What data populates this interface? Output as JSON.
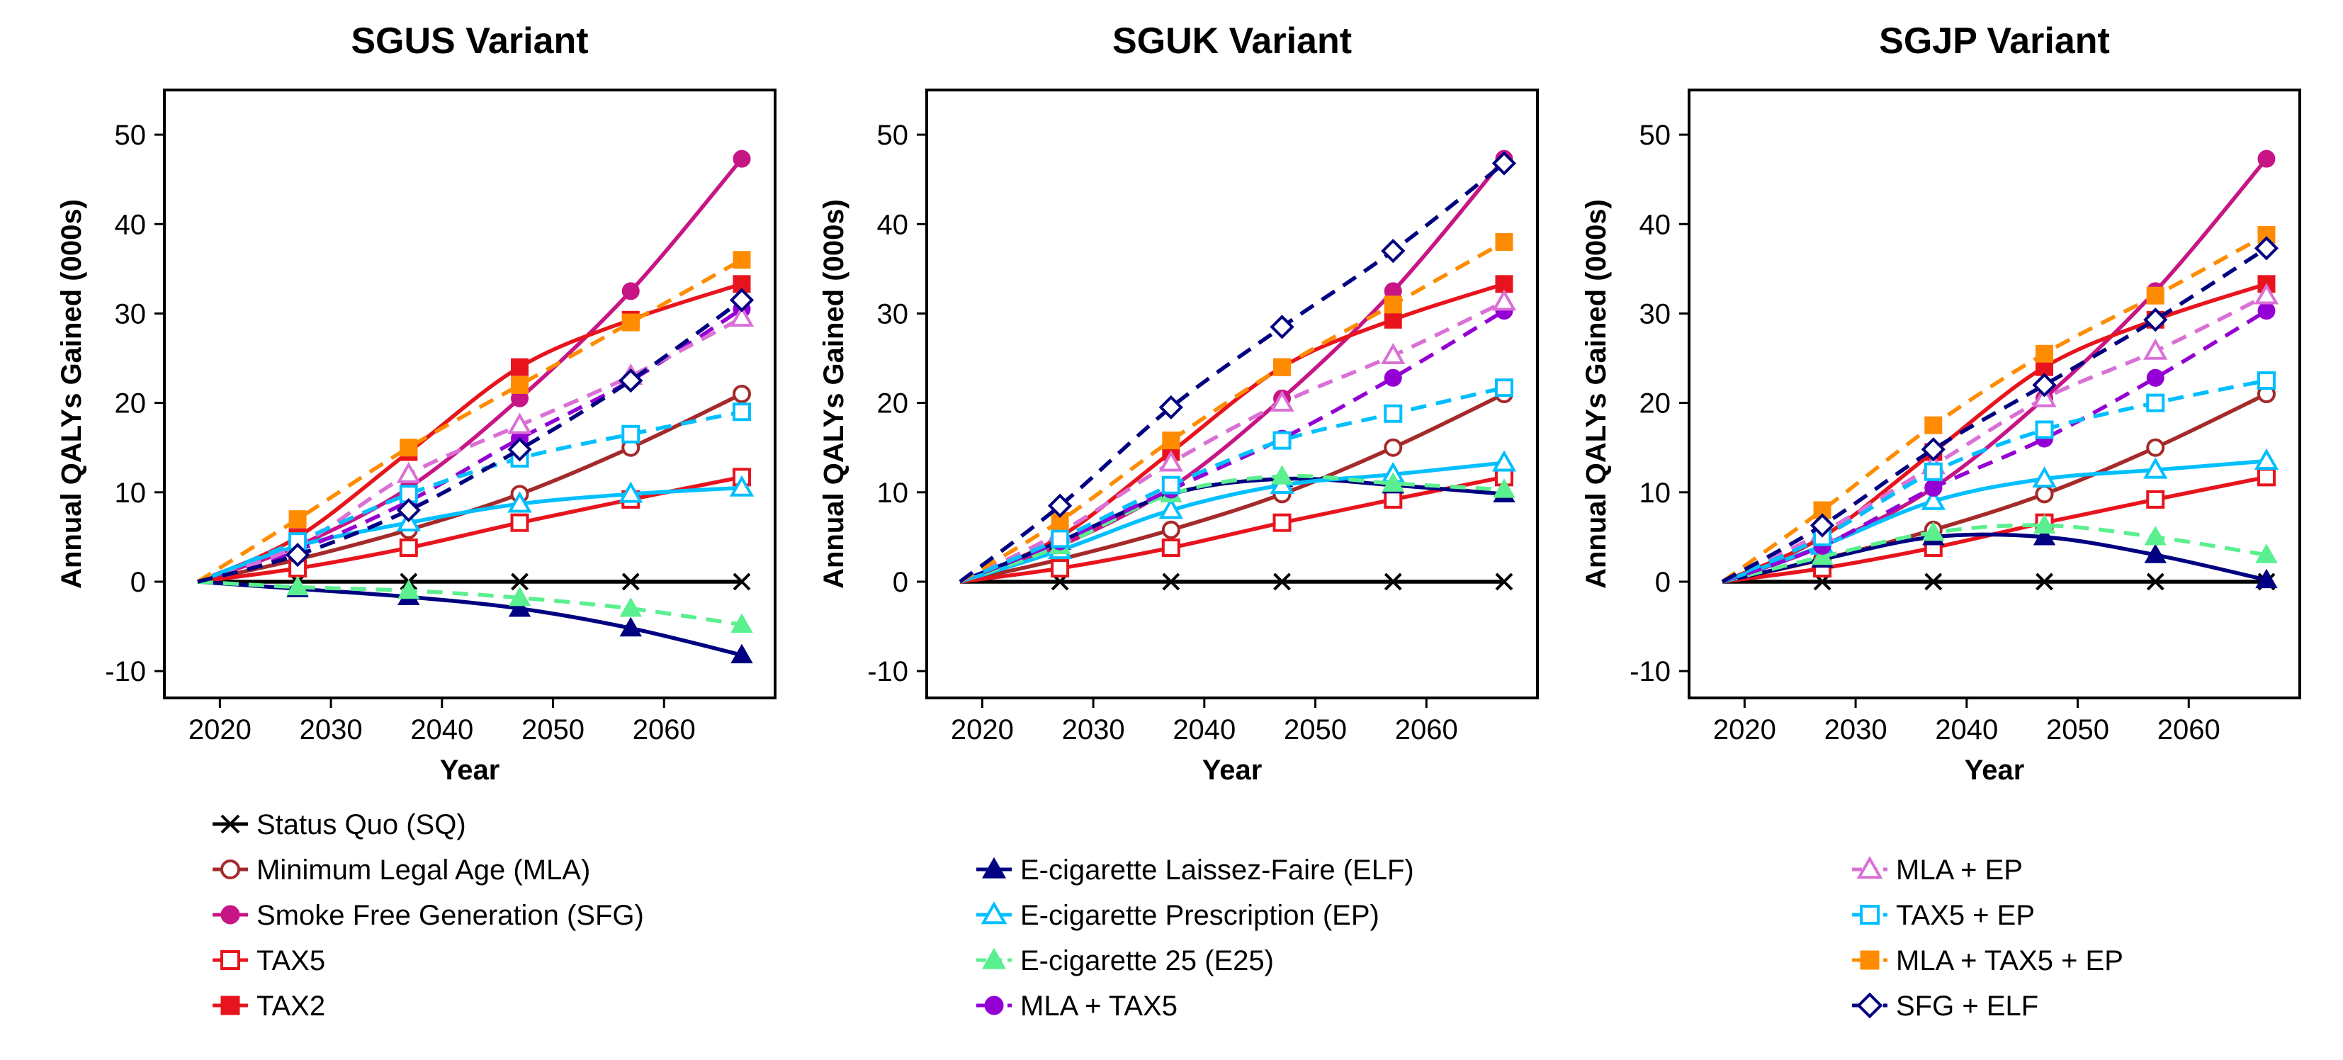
{
  "chart_data": [
    {
      "type": "line",
      "title": "SGUS Variant",
      "xlabel": "Year",
      "ylabel": "Annual QALYs Gained (000s)",
      "xlim": [
        2015,
        2070
      ],
      "ylim": [
        -13,
        55
      ],
      "xticks": [
        2020,
        2030,
        2040,
        2050,
        2060
      ],
      "yticks": [
        -10,
        0,
        10,
        20,
        30,
        40,
        50
      ],
      "grid": false,
      "start": [
        2018,
        0
      ],
      "x": [
        2027,
        2037,
        2047,
        2057,
        2067
      ],
      "series": [
        {
          "name": "Status Quo (SQ)",
          "values": [
            0,
            0,
            0,
            0,
            0
          ]
        },
        {
          "name": "Minimum Legal Age (MLA)",
          "values": [
            2.5,
            5.8,
            9.8,
            15.0,
            21.0
          ]
        },
        {
          "name": "Smoke Free Generation (SFG)",
          "values": [
            4.0,
            10.5,
            20.5,
            32.5,
            47.3
          ]
        },
        {
          "name": "TAX5",
          "values": [
            1.5,
            3.8,
            6.6,
            9.2,
            11.7
          ]
        },
        {
          "name": "TAX2",
          "values": [
            5.0,
            14.5,
            24.0,
            29.3,
            33.3
          ]
        },
        {
          "name": "E-cigarette Laissez-Faire (ELF)",
          "values": [
            -0.8,
            -1.7,
            -3.0,
            -5.2,
            -8.2
          ]
        },
        {
          "name": "E-cigarette Prescription (EP)",
          "values": [
            4.0,
            6.6,
            8.7,
            9.8,
            10.5
          ]
        },
        {
          "name": "E-cigarette 25 (E25)",
          "values": [
            -0.6,
            -1.0,
            -1.8,
            -3.0,
            -4.8
          ]
        },
        {
          "name": "MLA + TAX5",
          "values": [
            3.5,
            9.0,
            16.0,
            22.5,
            30.5
          ]
        },
        {
          "name": "MLA + EP",
          "values": [
            4.0,
            12.0,
            17.5,
            23.0,
            29.5
          ]
        },
        {
          "name": "TAX5 + EP",
          "values": [
            4.5,
            9.8,
            13.8,
            16.5,
            19.0
          ]
        },
        {
          "name": "MLA + TAX5 + EP",
          "values": [
            7.0,
            15.0,
            22.0,
            29.0,
            36.0
          ]
        },
        {
          "name": "SFG + ELF",
          "values": [
            3.0,
            8.0,
            14.8,
            22.5,
            31.5
          ]
        }
      ]
    },
    {
      "type": "line",
      "title": "SGUK Variant",
      "xlabel": "Year",
      "ylabel": "Annual QALYs Gained (000s)",
      "xlim": [
        2015,
        2070
      ],
      "ylim": [
        -13,
        55
      ],
      "xticks": [
        2020,
        2030,
        2040,
        2050,
        2060
      ],
      "yticks": [
        -10,
        0,
        10,
        20,
        30,
        40,
        50
      ],
      "grid": false,
      "start": [
        2018,
        0
      ],
      "x": [
        2027,
        2037,
        2047,
        2057,
        2067
      ],
      "series": [
        {
          "name": "Status Quo (SQ)",
          "values": [
            0,
            0,
            0,
            0,
            0
          ]
        },
        {
          "name": "Minimum Legal Age (MLA)",
          "values": [
            2.5,
            5.8,
            9.8,
            15.0,
            21.0
          ]
        },
        {
          "name": "Smoke Free Generation (SFG)",
          "values": [
            4.0,
            10.5,
            20.5,
            32.5,
            47.3
          ]
        },
        {
          "name": "TAX5",
          "values": [
            1.5,
            3.8,
            6.6,
            9.2,
            11.7
          ]
        },
        {
          "name": "TAX2",
          "values": [
            5.0,
            14.5,
            24.0,
            29.3,
            33.3
          ]
        },
        {
          "name": "E-cigarette Laissez-Faire (ELF)",
          "values": [
            4.5,
            9.8,
            11.5,
            10.8,
            9.8
          ]
        },
        {
          "name": "E-cigarette Prescription (EP)",
          "values": [
            3.5,
            8.0,
            10.8,
            12.0,
            13.3
          ]
        },
        {
          "name": "E-cigarette 25 (E25)",
          "values": [
            4.0,
            9.8,
            11.8,
            11.0,
            10.3
          ]
        },
        {
          "name": "MLA + TAX5",
          "values": [
            4.5,
            10.3,
            16.0,
            22.8,
            30.3
          ]
        },
        {
          "name": "MLA + EP",
          "values": [
            5.5,
            13.3,
            20.0,
            25.3,
            31.3
          ]
        },
        {
          "name": "TAX5 + EP",
          "values": [
            4.8,
            10.8,
            15.8,
            18.8,
            21.7
          ]
        },
        {
          "name": "MLA + TAX5 + EP",
          "values": [
            6.8,
            15.8,
            24.0,
            31.0,
            38.0
          ]
        },
        {
          "name": "SFG + ELF",
          "values": [
            8.5,
            19.5,
            28.5,
            37.0,
            46.8
          ]
        }
      ]
    },
    {
      "type": "line",
      "title": "SGJP Variant",
      "xlabel": "Year",
      "ylabel": "Annual QALYs Gained (000s)",
      "xlim": [
        2015,
        2070
      ],
      "ylim": [
        -13,
        55
      ],
      "xticks": [
        2020,
        2030,
        2040,
        2050,
        2060
      ],
      "yticks": [
        -10,
        0,
        10,
        20,
        30,
        40,
        50
      ],
      "grid": false,
      "start": [
        2018,
        0
      ],
      "x": [
        2027,
        2037,
        2047,
        2057,
        2067
      ],
      "series": [
        {
          "name": "Status Quo (SQ)",
          "values": [
            0,
            0,
            0,
            0,
            0
          ]
        },
        {
          "name": "Minimum Legal Age (MLA)",
          "values": [
            2.5,
            5.8,
            9.8,
            15.0,
            21.0
          ]
        },
        {
          "name": "Smoke Free Generation (SFG)",
          "values": [
            4.0,
            10.5,
            20.5,
            32.5,
            47.3
          ]
        },
        {
          "name": "TAX5",
          "values": [
            1.5,
            3.8,
            6.6,
            9.2,
            11.7
          ]
        },
        {
          "name": "TAX2",
          "values": [
            5.0,
            14.5,
            24.0,
            29.3,
            33.3
          ]
        },
        {
          "name": "E-cigarette Laissez-Faire (ELF)",
          "values": [
            2.5,
            5.0,
            5.0,
            3.0,
            0.2
          ]
        },
        {
          "name": "E-cigarette Prescription (EP)",
          "values": [
            4.0,
            9.0,
            11.5,
            12.5,
            13.5
          ]
        },
        {
          "name": "E-cigarette 25 (E25)",
          "values": [
            2.8,
            5.5,
            6.3,
            5.0,
            3.0
          ]
        },
        {
          "name": "MLA + TAX5",
          "values": [
            4.0,
            10.5,
            16.0,
            22.8,
            30.3
          ]
        },
        {
          "name": "MLA + EP",
          "values": [
            5.5,
            13.0,
            20.5,
            25.8,
            32.0
          ]
        },
        {
          "name": "TAX5 + EP",
          "values": [
            5.0,
            12.3,
            17.0,
            20.0,
            22.5
          ]
        },
        {
          "name": "MLA + TAX5 + EP",
          "values": [
            8.0,
            17.5,
            25.5,
            32.0,
            38.8
          ]
        },
        {
          "name": "SFG + ELF",
          "values": [
            6.3,
            14.8,
            22.0,
            29.3,
            37.3
          ]
        }
      ]
    }
  ],
  "styles": {
    "Status Quo (SQ)": {
      "color": "#000000",
      "dash": "solid",
      "marker": "x"
    },
    "Minimum Legal Age (MLA)": {
      "color": "#a52a2a",
      "dash": "solid",
      "marker": "circle-open"
    },
    "Smoke Free Generation (SFG)": {
      "color": "#c71585",
      "dash": "solid",
      "marker": "circle-filled"
    },
    "TAX5": {
      "color": "#e8141d",
      "dash": "solid",
      "marker": "square-open"
    },
    "TAX2": {
      "color": "#e8141d",
      "dash": "solid",
      "marker": "square-filled"
    },
    "E-cigarette Laissez-Faire (ELF)": {
      "color": "#000080",
      "dash": "solid",
      "marker": "triangle-filled"
    },
    "E-cigarette Prescription (EP)": {
      "color": "#00bfff",
      "dash": "solid",
      "marker": "triangle-open"
    },
    "E-cigarette 25 (E25)": {
      "color": "#5aef8f",
      "dash": "dashed",
      "marker": "triangle-filled"
    },
    "MLA + TAX5": {
      "color": "#9400d3",
      "dash": "dashed",
      "marker": "circle-filled"
    },
    "MLA + EP": {
      "color": "#da70d6",
      "dash": "dashed",
      "marker": "triangle-open"
    },
    "TAX5 + EP": {
      "color": "#00bfff",
      "dash": "dashed",
      "marker": "square-open"
    },
    "MLA + TAX5 + EP": {
      "color": "#ff8c00",
      "dash": "dashed",
      "marker": "square-filled"
    },
    "SFG + ELF": {
      "color": "#000080",
      "dash": "dashed",
      "marker": "diamond-open"
    }
  },
  "legend": {
    "placement": "bottom",
    "columns": [
      [
        "Status Quo (SQ)",
        "Minimum Legal Age (MLA)",
        "Smoke Free Generation (SFG)",
        "TAX5",
        "TAX2"
      ],
      [
        "E-cigarette Laissez-Faire (ELF)",
        "E-cigarette Prescription (EP)",
        "E-cigarette 25 (E25)",
        "MLA + TAX5"
      ],
      [
        "MLA + EP",
        "TAX5 + EP",
        "MLA + TAX5 + EP",
        "SFG + ELF"
      ]
    ]
  }
}
